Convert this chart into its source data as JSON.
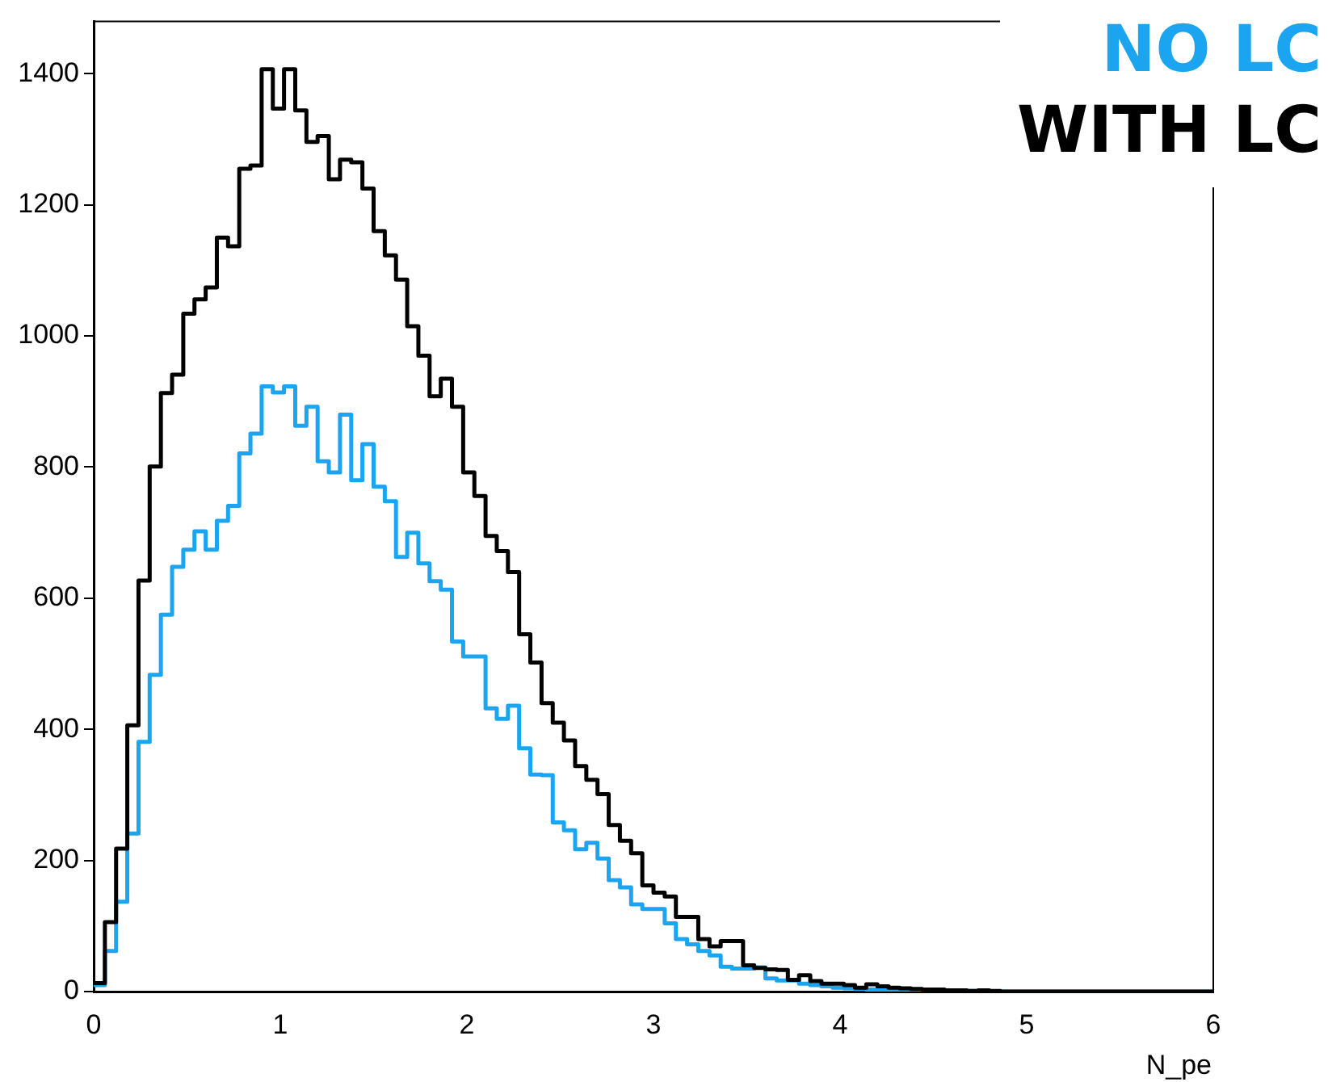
{
  "chart_data": {
    "type": "histogram",
    "xlabel": "N_pe",
    "legend": "top right",
    "xlim": [
      0,
      6
    ],
    "xticks": [
      0,
      1,
      2,
      3,
      4,
      5,
      6
    ],
    "ylim": [
      0,
      1480
    ],
    "yticks": [
      0,
      200,
      400,
      600,
      800,
      1000,
      1200,
      1400
    ],
    "bins": [
      0,
      0.06,
      0.12,
      0.18,
      0.24,
      0.3,
      0.36,
      0.42,
      0.48,
      0.54,
      0.6,
      0.66,
      0.72,
      0.78,
      0.84,
      0.9,
      0.96,
      1.02,
      1.08,
      1.14,
      1.2,
      1.26,
      1.32,
      1.38,
      1.44,
      1.5,
      1.56,
      1.62,
      1.68,
      1.74,
      1.8,
      1.86,
      1.92,
      1.98,
      2.04,
      2.1,
      2.16,
      2.22,
      2.28,
      2.34,
      2.4,
      2.46,
      2.52,
      2.58,
      2.64,
      2.7,
      2.76,
      2.82,
      2.88,
      2.94,
      3,
      3.06,
      3.12,
      3.18,
      3.24,
      3.3,
      3.36,
      3.42,
      3.48,
      3.54,
      3.6,
      3.66,
      3.72,
      3.78,
      3.84,
      3.9,
      3.96,
      4.02,
      4.08,
      4.14,
      4.2,
      4.26,
      4.32,
      4.38,
      4.44,
      4.5,
      4.56,
      4.62,
      4.68,
      4.74,
      4.8,
      4.86,
      4.92,
      4.98,
      5.04,
      5.1,
      5.16,
      5.22,
      5.28,
      5.34,
      5.4,
      5.46,
      5.52,
      5.58,
      5.64,
      5.7,
      5.76,
      5.82,
      5.88,
      5.94,
      6
    ],
    "series": [
      {
        "name": "NO LC",
        "color": "#1ba5f0",
        "values": [
          10,
          62,
          137,
          241,
          381,
          483,
          575,
          648,
          674,
          702,
          674,
          718,
          741,
          821,
          851,
          923,
          914,
          923,
          863,
          892,
          809,
          792,
          880,
          780,
          835,
          770,
          748,
          663,
          700,
          653,
          626,
          613,
          534,
          511,
          511,
          432,
          416,
          436,
          371,
          331,
          330,
          258,
          246,
          217,
          227,
          203,
          170,
          159,
          133,
          126,
          126,
          104,
          80,
          72,
          62,
          55,
          38,
          35,
          35,
          37,
          20,
          17,
          17,
          12,
          10,
          8,
          6,
          5,
          4,
          3,
          3,
          3,
          2,
          2,
          2,
          1,
          2,
          1,
          1,
          0,
          0,
          0,
          0,
          0,
          0,
          0,
          0,
          0,
          0,
          0,
          0,
          0,
          0,
          0,
          0,
          0,
          0,
          0,
          0,
          0
        ]
      },
      {
        "name": "WITH LC",
        "color": "#000000",
        "values": [
          13,
          106,
          218,
          406,
          627,
          801,
          913,
          941,
          1034,
          1056,
          1074,
          1150,
          1137,
          1255,
          1260,
          1407,
          1347,
          1407,
          1344,
          1296,
          1305,
          1239,
          1269,
          1265,
          1225,
          1160,
          1123,
          1086,
          1015,
          970,
          908,
          935,
          892,
          792,
          756,
          695,
          672,
          640,
          545,
          502,
          440,
          410,
          383,
          344,
          323,
          301,
          254,
          230,
          211,
          162,
          151,
          145,
          114,
          114,
          80,
          69,
          77,
          77,
          40,
          36,
          34,
          33,
          18,
          25,
          16,
          12,
          12,
          10,
          6,
          11,
          8,
          6,
          5,
          4,
          3,
          3,
          2,
          2,
          1,
          2,
          1,
          0,
          0,
          0,
          0,
          0,
          0,
          0,
          0,
          0,
          0,
          0,
          0,
          0,
          0,
          0,
          0,
          0,
          0,
          0
        ]
      }
    ]
  }
}
